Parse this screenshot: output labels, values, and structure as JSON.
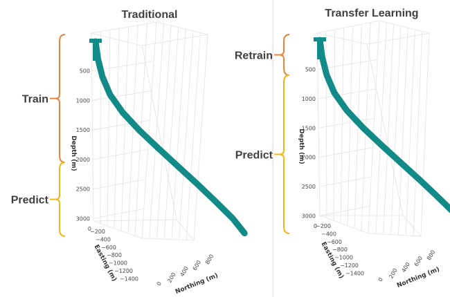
{
  "colors": {
    "well": "#128a88",
    "train": "#e8833a",
    "predict": "#f2b619",
    "retrain": "#e8833a",
    "divider": "#d9d9d9"
  },
  "chart_data": [
    {
      "type": "line",
      "title": "Traditional",
      "axes": {
        "x": "Easting (m)",
        "y": "Northing (m)",
        "z": "Depth (m)"
      },
      "easting_ticks": [
        "0",
        "−200",
        "−400",
        "−600",
        "−800",
        "−1000",
        "−1200",
        "−1400"
      ],
      "northing_ticks": [
        "0",
        "200",
        "400",
        "600",
        "800"
      ],
      "depth_ticks": [
        "500",
        "1000",
        "1500",
        "2000",
        "2500",
        "3000"
      ],
      "zlim": [
        0,
        3300
      ],
      "brackets": [
        {
          "label": "Train",
          "depth_range": [
            0,
            2050
          ]
        },
        {
          "label": "Predict",
          "depth_range": [
            2050,
            3300
          ]
        }
      ],
      "well_path": {
        "depth": [
          0,
          300,
          600,
          900,
          1200,
          1500,
          1800,
          2100,
          2400,
          2700,
          3000,
          3250
        ],
        "easting": [
          0,
          -20,
          -60,
          -130,
          -250,
          -420,
          -600,
          -780,
          -960,
          -1130,
          -1290,
          -1400
        ],
        "northing": [
          0,
          15,
          40,
          80,
          140,
          210,
          300,
          400,
          500,
          600,
          700,
          760
        ]
      }
    },
    {
      "type": "line",
      "title": "Transfer Learning",
      "axes": {
        "x": "Easting (m)",
        "y": "Northing (m)",
        "z": "Depth (m)"
      },
      "easting_ticks": [
        "0",
        "−200",
        "−400",
        "−600",
        "−800",
        "−1000",
        "−1200",
        "−1400"
      ],
      "northing_ticks": [
        "0",
        "200",
        "400",
        "600",
        "800"
      ],
      "depth_ticks": [
        "500",
        "1000",
        "1500",
        "2000",
        "2500",
        "3000"
      ],
      "zlim": [
        0,
        3300
      ],
      "brackets": [
        {
          "label": "Retrain",
          "depth_range": [
            0,
            600
          ]
        },
        {
          "label": "Predict",
          "depth_range": [
            600,
            3300
          ]
        }
      ],
      "well_path": {
        "depth": [
          0,
          300,
          600,
          900,
          1200,
          1500,
          1800,
          2100,
          2400,
          2700,
          3000,
          3250
        ],
        "easting": [
          0,
          -20,
          -60,
          -130,
          -250,
          -420,
          -600,
          -780,
          -960,
          -1130,
          -1290,
          -1400
        ],
        "northing": [
          0,
          15,
          40,
          80,
          140,
          210,
          300,
          400,
          500,
          600,
          700,
          760
        ]
      }
    }
  ]
}
